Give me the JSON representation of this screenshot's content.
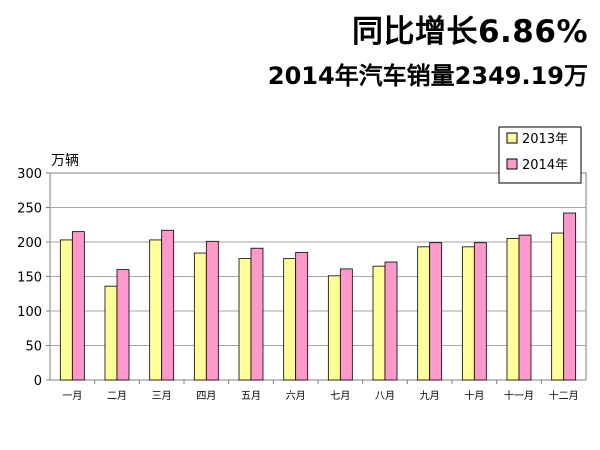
{
  "header": {
    "title": "同比增长6.86%",
    "subtitle": "2014年汽车销量2349.19万"
  },
  "chart_data": {
    "type": "bar",
    "title": "同比增长6.86%",
    "subtitle": "2014年汽车销量2349.19万",
    "ylabel": "万辆",
    "xlabel": "",
    "ylim": [
      0,
      300
    ],
    "yticks": [
      0,
      50,
      100,
      150,
      200,
      250,
      300
    ],
    "grid": true,
    "legend_position": "top-right",
    "categories": [
      "一月",
      "二月",
      "三月",
      "四月",
      "五月",
      "六月",
      "七月",
      "八月",
      "九月",
      "十月",
      "十一月",
      "十二月"
    ],
    "series": [
      {
        "name": "2013年",
        "color": "#ffff99",
        "values": [
          203,
          136,
          203,
          184,
          176,
          176,
          151,
          165,
          193,
          193,
          205,
          213
        ]
      },
      {
        "name": "2014年",
        "color": "#ff99cc",
        "values": [
          215,
          160,
          217,
          201,
          191,
          185,
          161,
          171,
          199,
          199,
          210,
          242
        ]
      }
    ]
  }
}
